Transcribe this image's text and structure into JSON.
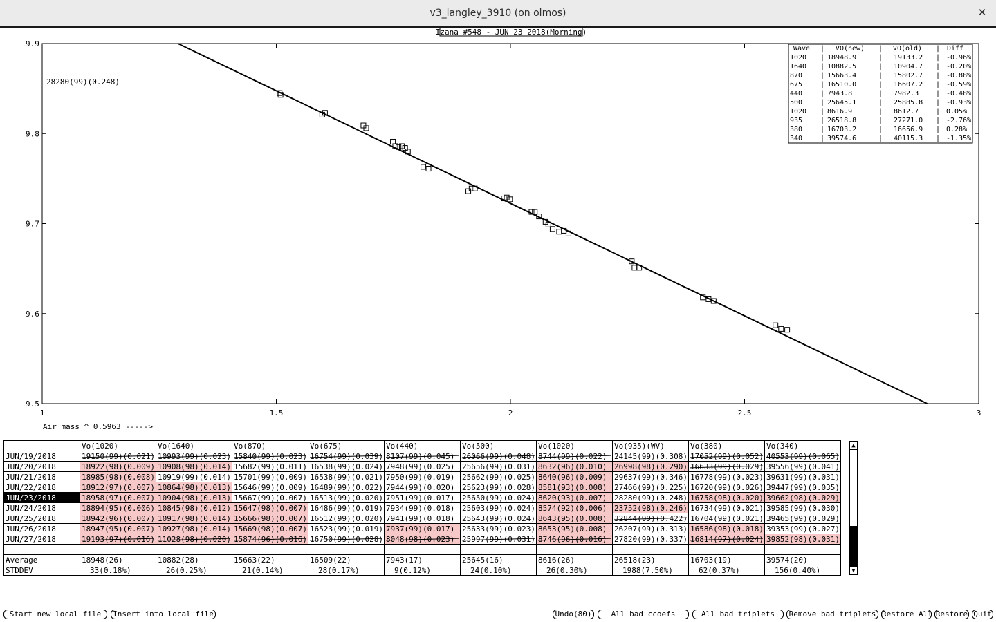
{
  "window": {
    "title": "v3_langley_3910 (on olmos)"
  },
  "chart_data": {
    "type": "scatter",
    "title": "Izana #548 - JUN 23 2018(Morning)",
    "xlabel": "Air mass ^ 0.5963 ----->",
    "ylabel": "",
    "xlim": [
      1,
      3
    ],
    "ylim": [
      9.5,
      9.9
    ],
    "x_ticks": [
      "1",
      "1.5",
      "2",
      "2.5",
      "3"
    ],
    "y_ticks": [
      "9.9",
      "9.8",
      "9.7",
      "9.6",
      "9.5"
    ],
    "annotation": "28280(99)(0.248)",
    "fit_line": {
      "x": [
        1.29,
        2.89
      ],
      "y": [
        9.9,
        9.5
      ]
    },
    "points": [
      {
        "x": 1.507,
        "y": 9.845
      },
      {
        "x": 1.509,
        "y": 9.843
      },
      {
        "x": 1.598,
        "y": 9.821
      },
      {
        "x": 1.604,
        "y": 9.823
      },
      {
        "x": 1.686,
        "y": 9.809
      },
      {
        "x": 1.692,
        "y": 9.806
      },
      {
        "x": 1.749,
        "y": 9.791
      },
      {
        "x": 1.754,
        "y": 9.786
      },
      {
        "x": 1.761,
        "y": 9.785
      },
      {
        "x": 1.768,
        "y": 9.786
      },
      {
        "x": 1.775,
        "y": 9.784
      },
      {
        "x": 1.781,
        "y": 9.78
      },
      {
        "x": 1.814,
        "y": 9.763
      },
      {
        "x": 1.825,
        "y": 9.761
      },
      {
        "x": 1.91,
        "y": 9.736
      },
      {
        "x": 1.917,
        "y": 9.739
      },
      {
        "x": 1.924,
        "y": 9.739
      },
      {
        "x": 1.986,
        "y": 9.728
      },
      {
        "x": 1.992,
        "y": 9.729
      },
      {
        "x": 1.999,
        "y": 9.727
      },
      {
        "x": 2.045,
        "y": 9.713
      },
      {
        "x": 2.052,
        "y": 9.713
      },
      {
        "x": 2.061,
        "y": 9.708
      },
      {
        "x": 2.075,
        "y": 9.702
      },
      {
        "x": 2.081,
        "y": 9.699
      },
      {
        "x": 2.09,
        "y": 9.694
      },
      {
        "x": 2.104,
        "y": 9.691
      },
      {
        "x": 2.114,
        "y": 9.692
      },
      {
        "x": 2.124,
        "y": 9.689
      },
      {
        "x": 2.259,
        "y": 9.658
      },
      {
        "x": 2.265,
        "y": 9.651
      },
      {
        "x": 2.275,
        "y": 9.651
      },
      {
        "x": 2.411,
        "y": 9.618
      },
      {
        "x": 2.423,
        "y": 9.616
      },
      {
        "x": 2.434,
        "y": 9.614
      },
      {
        "x": 2.566,
        "y": 9.587
      },
      {
        "x": 2.578,
        "y": 9.583
      },
      {
        "x": 2.591,
        "y": 9.582
      }
    ],
    "legend_table": {
      "headers": [
        "Wave",
        "VO(new)",
        "VO(old)",
        "Diff"
      ],
      "rows": [
        [
          "1020",
          "18948.9",
          "19133.2",
          "-0.96%"
        ],
        [
          "1640",
          "10882.5",
          "10904.7",
          "-0.20%"
        ],
        [
          "870",
          "15663.4",
          "15802.7",
          "-0.88%"
        ],
        [
          "675",
          "16510.0",
          "16607.2",
          "-0.59%"
        ],
        [
          "440",
          "7943.8",
          "7982.3",
          "-0.48%"
        ],
        [
          "500",
          "25645.1",
          "25885.8",
          "-0.93%"
        ],
        [
          "1020",
          "8616.9",
          "8612.7",
          "0.05%"
        ],
        [
          "935",
          "26518.8",
          "27271.0",
          "-2.76%"
        ],
        [
          "380",
          "16703.2",
          "16656.9",
          "0.28%"
        ],
        [
          "340",
          "39574.6",
          "40115.3",
          "-1.35%"
        ]
      ]
    }
  },
  "table": {
    "headers": [
      "",
      "Vo(1020)",
      "Vo(1640)",
      "Vo(870)",
      "Vo(675)",
      "Vo(440)",
      "Vo(500)",
      "Vo(1020)",
      "Vo(935)(WV)",
      "Vo(380)",
      "Vo(340)"
    ],
    "rows": [
      {
        "label": "JUN/19/2018",
        "cells": [
          {
            "v": "19150(99)(0.021)",
            "s": "struck"
          },
          {
            "v": "10993(99)(0.023)",
            "s": "struck"
          },
          {
            "v": "15840(99)(0.023)",
            "s": "struck"
          },
          {
            "v": "16754(99)(0.039)",
            "s": "struck"
          },
          {
            "v": "8107(99)(0.045)",
            "s": "struck"
          },
          {
            "v": "26066(99)(0.048)",
            "s": "struck"
          },
          {
            "v": "8744(99)(0.022)",
            "s": "struck"
          },
          {
            "v": "24145(99)(0.308)",
            "s": ""
          },
          {
            "v": "17052(99)(0.052)",
            "s": "struck"
          },
          {
            "v": "40553(99)(0.065)",
            "s": "struck"
          }
        ]
      },
      {
        "label": "JUN/20/2018",
        "cells": [
          {
            "v": "18922(98)(0.009)",
            "s": "bad"
          },
          {
            "v": "10908(98)(0.014)",
            "s": "bad"
          },
          {
            "v": "15682(99)(0.011)",
            "s": ""
          },
          {
            "v": "16538(99)(0.024)",
            "s": ""
          },
          {
            "v": "7948(99)(0.025)",
            "s": ""
          },
          {
            "v": "25656(99)(0.031)",
            "s": ""
          },
          {
            "v": "8632(96)(0.010)",
            "s": "bad"
          },
          {
            "v": "26998(98)(0.290)",
            "s": "bad"
          },
          {
            "v": "16633(99)(0.029)",
            "s": "struck"
          },
          {
            "v": "39556(99)(0.041)",
            "s": ""
          }
        ]
      },
      {
        "label": "JUN/21/2018",
        "cells": [
          {
            "v": "18985(98)(0.008)",
            "s": "bad"
          },
          {
            "v": "10919(99)(0.014)",
            "s": ""
          },
          {
            "v": "15701(99)(0.009)",
            "s": ""
          },
          {
            "v": "16538(99)(0.021)",
            "s": ""
          },
          {
            "v": "7950(99)(0.019)",
            "s": ""
          },
          {
            "v": "25662(99)(0.025)",
            "s": ""
          },
          {
            "v": "8640(96)(0.009)",
            "s": "bad"
          },
          {
            "v": "29637(99)(0.346)",
            "s": ""
          },
          {
            "v": "16778(99)(0.023)",
            "s": ""
          },
          {
            "v": "39631(99)(0.031)",
            "s": ""
          }
        ]
      },
      {
        "label": "JUN/22/2018",
        "cells": [
          {
            "v": "18912(97)(0.007)",
            "s": "bad"
          },
          {
            "v": "10864(98)(0.013)",
            "s": "bad"
          },
          {
            "v": "15646(99)(0.009)",
            "s": ""
          },
          {
            "v": "16489(99)(0.022)",
            "s": ""
          },
          {
            "v": "7944(99)(0.020)",
            "s": ""
          },
          {
            "v": "25623(99)(0.028)",
            "s": ""
          },
          {
            "v": "8581(93)(0.008)",
            "s": "bad"
          },
          {
            "v": "27466(99)(0.225)",
            "s": ""
          },
          {
            "v": "16720(99)(0.026)",
            "s": ""
          },
          {
            "v": "39447(99)(0.035)",
            "s": ""
          }
        ]
      },
      {
        "label": "JUN/23/2018",
        "selected": true,
        "cells": [
          {
            "v": "18958(97)(0.007)",
            "s": "bad"
          },
          {
            "v": "10904(98)(0.013)",
            "s": "bad"
          },
          {
            "v": "15667(99)(0.007)",
            "s": ""
          },
          {
            "v": "16513(99)(0.020)",
            "s": ""
          },
          {
            "v": "7951(99)(0.017)",
            "s": ""
          },
          {
            "v": "25650(99)(0.024)",
            "s": ""
          },
          {
            "v": "8620(93)(0.007)",
            "s": "bad"
          },
          {
            "v": "28280(99)(0.248)",
            "s": ""
          },
          {
            "v": "16758(98)(0.020)",
            "s": "bad"
          },
          {
            "v": "39662(98)(0.029)",
            "s": "bad"
          }
        ]
      },
      {
        "label": "JUN/24/2018",
        "cells": [
          {
            "v": "18894(95)(0.006)",
            "s": "bad"
          },
          {
            "v": "10845(98)(0.012)",
            "s": "bad"
          },
          {
            "v": "15647(98)(0.007)",
            "s": "bad"
          },
          {
            "v": "16486(99)(0.019)",
            "s": ""
          },
          {
            "v": "7934(99)(0.018)",
            "s": ""
          },
          {
            "v": "25603(99)(0.024)",
            "s": ""
          },
          {
            "v": "8574(92)(0.006)",
            "s": "bad"
          },
          {
            "v": "23752(98)(0.246)",
            "s": "bad"
          },
          {
            "v": "16734(99)(0.021)",
            "s": ""
          },
          {
            "v": "39585(99)(0.030)",
            "s": ""
          }
        ]
      },
      {
        "label": "JUN/25/2018",
        "cells": [
          {
            "v": "18942(96)(0.007)",
            "s": "bad"
          },
          {
            "v": "10917(98)(0.014)",
            "s": "bad"
          },
          {
            "v": "15666(98)(0.007)",
            "s": "bad"
          },
          {
            "v": "16512(99)(0.020)",
            "s": ""
          },
          {
            "v": "7941(99)(0.018)",
            "s": ""
          },
          {
            "v": "25643(99)(0.024)",
            "s": ""
          },
          {
            "v": "8643(95)(0.008)",
            "s": "bad"
          },
          {
            "v": "32844(99)(0.422)",
            "s": "struck"
          },
          {
            "v": "16704(99)(0.021)",
            "s": ""
          },
          {
            "v": "39465(99)(0.029)",
            "s": ""
          }
        ]
      },
      {
        "label": "JUN/26/2018",
        "cells": [
          {
            "v": "18947(95)(0.007)",
            "s": "bad"
          },
          {
            "v": "10927(98)(0.014)",
            "s": "bad"
          },
          {
            "v": "15669(98)(0.007)",
            "s": "bad"
          },
          {
            "v": "16523(99)(0.019)",
            "s": ""
          },
          {
            "v": "7937(99)(0.017)",
            "s": "bad"
          },
          {
            "v": "25633(99)(0.023)",
            "s": ""
          },
          {
            "v": "8653(95)(0.008)",
            "s": "bad"
          },
          {
            "v": "26207(99)(0.313)",
            "s": ""
          },
          {
            "v": "16586(98)(0.018)",
            "s": "bad"
          },
          {
            "v": "39353(99)(0.027)",
            "s": ""
          }
        ]
      },
      {
        "label": "JUN/27/2018",
        "cells": [
          {
            "v": "19193(97)(0.016)",
            "s": "bad struck"
          },
          {
            "v": "11028(98)(0.020)",
            "s": "bad struck"
          },
          {
            "v": "15874(96)(0.016)",
            "s": "bad struck"
          },
          {
            "v": "16750(99)(0.028)",
            "s": "struck"
          },
          {
            "v": "8048(98)(0.023)",
            "s": "bad struck"
          },
          {
            "v": "25997(99)(0.031)",
            "s": "struck"
          },
          {
            "v": "8746(96)(0.016)",
            "s": "bad struck"
          },
          {
            "v": "27820(99)(0.337)",
            "s": ""
          },
          {
            "v": "16814(97)(0.024)",
            "s": "bad struck"
          },
          {
            "v": "39852(98)(0.031)",
            "s": "bad"
          }
        ]
      }
    ],
    "average_label": "Average",
    "average": [
      "18948(26)",
      "10882(28)",
      "15663(22)",
      "16509(22)",
      "7943(17)",
      "25645(16)",
      "8616(26)",
      "26518(23)",
      "16703(19)",
      "39574(20)"
    ],
    "stddev_label": "STDDEV",
    "stddev": [
      "33(0.18%)",
      "26(0.25%)",
      "21(0.14%)",
      "28(0.17%)",
      "9(0.12%)",
      "24(0.10%)",
      "26(0.30%)",
      "1988(7.50%)",
      "62(0.37%)",
      "156(0.40%)"
    ]
  },
  "buttons": {
    "start_new": "Start new local file",
    "insert": "Insert into local file",
    "undo": "Undo(80)",
    "all_bad_ccoefs": "All bad ccoefs",
    "all_bad_triplets": "All bad triplets",
    "remove_bad_triplets": "Remove bad triplets",
    "restore_all": "Restore All",
    "restore": "Restore",
    "quit": "Quit"
  },
  "icons": {
    "close": "close-icon",
    "scroll_up": "arrow-up-icon",
    "scroll_down": "arrow-down-icon"
  }
}
